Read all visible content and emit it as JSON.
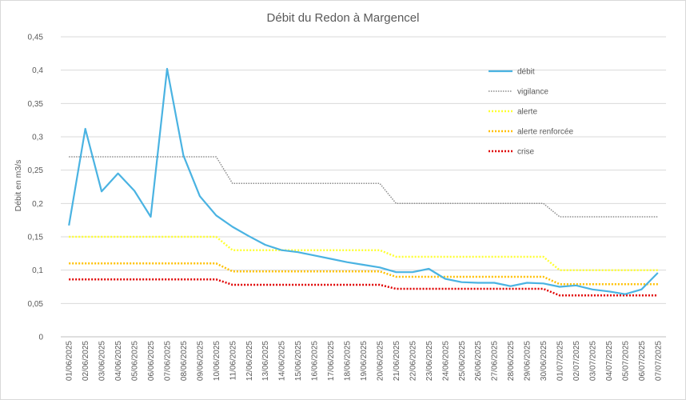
{
  "chart_data": {
    "type": "line",
    "title": "Débit du Redon à Margencel",
    "xlabel": "",
    "ylabel": "Débit en m3/s",
    "ylim": [
      0,
      0.45
    ],
    "yticks": [
      "0",
      "0,05",
      "0,1",
      "0,15",
      "0,2",
      "0,25",
      "0,3",
      "0,35",
      "0,4",
      "0,45"
    ],
    "grid": true,
    "legend_position": "right",
    "categories": [
      "01/06/2025",
      "02/06/2025",
      "03/06/2025",
      "04/06/2025",
      "05/06/2025",
      "06/06/2025",
      "07/06/2025",
      "08/06/2025",
      "09/06/2025",
      "10/06/2025",
      "11/06/2025",
      "12/06/2025",
      "13/06/2025",
      "14/06/2025",
      "15/06/2025",
      "16/06/2025",
      "17/06/2025",
      "18/06/2025",
      "19/06/2025",
      "20/06/2025",
      "21/06/2025",
      "22/06/2025",
      "23/06/2025",
      "24/06/2025",
      "25/06/2025",
      "26/06/2025",
      "27/06/2025",
      "28/06/2025",
      "29/06/2025",
      "30/06/2025",
      "01/07/2025",
      "02/07/2025",
      "03/07/2025",
      "04/07/2025",
      "05/07/2025",
      "06/07/2025",
      "07/07/2025"
    ],
    "series": [
      {
        "name": "débit",
        "color": "#4ab3e2",
        "style": "solid",
        "values": [
          0.167,
          0.312,
          0.218,
          0.245,
          0.219,
          0.18,
          0.402,
          0.272,
          0.211,
          0.182,
          0.165,
          0.151,
          0.138,
          0.13,
          0.127,
          0.122,
          0.117,
          0.112,
          0.108,
          0.104,
          0.097,
          0.097,
          0.102,
          0.087,
          0.082,
          0.081,
          0.081,
          0.076,
          0.081,
          0.08,
          0.075,
          0.077,
          0.071,
          0.068,
          0.064,
          0.071,
          0.096
        ]
      },
      {
        "name": "vigilance",
        "color": "#8c8c8c",
        "style": "dotted",
        "values": [
          0.27,
          0.27,
          0.27,
          0.27,
          0.27,
          0.27,
          0.27,
          0.27,
          0.27,
          0.27,
          0.23,
          0.23,
          0.23,
          0.23,
          0.23,
          0.23,
          0.23,
          0.23,
          0.23,
          0.23,
          0.2,
          0.2,
          0.2,
          0.2,
          0.2,
          0.2,
          0.2,
          0.2,
          0.2,
          0.2,
          0.18,
          0.18,
          0.18,
          0.18,
          0.18,
          0.18,
          0.18
        ]
      },
      {
        "name": "alerte",
        "color": "#ffff33",
        "style": "dotted",
        "values": [
          0.15,
          0.15,
          0.15,
          0.15,
          0.15,
          0.15,
          0.15,
          0.15,
          0.15,
          0.15,
          0.13,
          0.13,
          0.13,
          0.13,
          0.13,
          0.13,
          0.13,
          0.13,
          0.13,
          0.13,
          0.12,
          0.12,
          0.12,
          0.12,
          0.12,
          0.12,
          0.12,
          0.12,
          0.12,
          0.12,
          0.1,
          0.1,
          0.1,
          0.1,
          0.1,
          0.1,
          0.1
        ]
      },
      {
        "name": "alerte renforcée",
        "color": "#ffc000",
        "style": "dotted",
        "values": [
          0.11,
          0.11,
          0.11,
          0.11,
          0.11,
          0.11,
          0.11,
          0.11,
          0.11,
          0.11,
          0.098,
          0.098,
          0.098,
          0.098,
          0.098,
          0.098,
          0.098,
          0.098,
          0.098,
          0.098,
          0.09,
          0.09,
          0.09,
          0.09,
          0.09,
          0.09,
          0.09,
          0.09,
          0.09,
          0.09,
          0.079,
          0.079,
          0.079,
          0.079,
          0.079,
          0.079,
          0.079
        ]
      },
      {
        "name": "crise",
        "color": "#e00000",
        "style": "dotted",
        "values": [
          0.086,
          0.086,
          0.086,
          0.086,
          0.086,
          0.086,
          0.086,
          0.086,
          0.086,
          0.086,
          0.078,
          0.078,
          0.078,
          0.078,
          0.078,
          0.078,
          0.078,
          0.078,
          0.078,
          0.078,
          0.072,
          0.072,
          0.072,
          0.072,
          0.072,
          0.072,
          0.072,
          0.072,
          0.072,
          0.072,
          0.062,
          0.062,
          0.062,
          0.062,
          0.062,
          0.062,
          0.062
        ]
      }
    ]
  }
}
